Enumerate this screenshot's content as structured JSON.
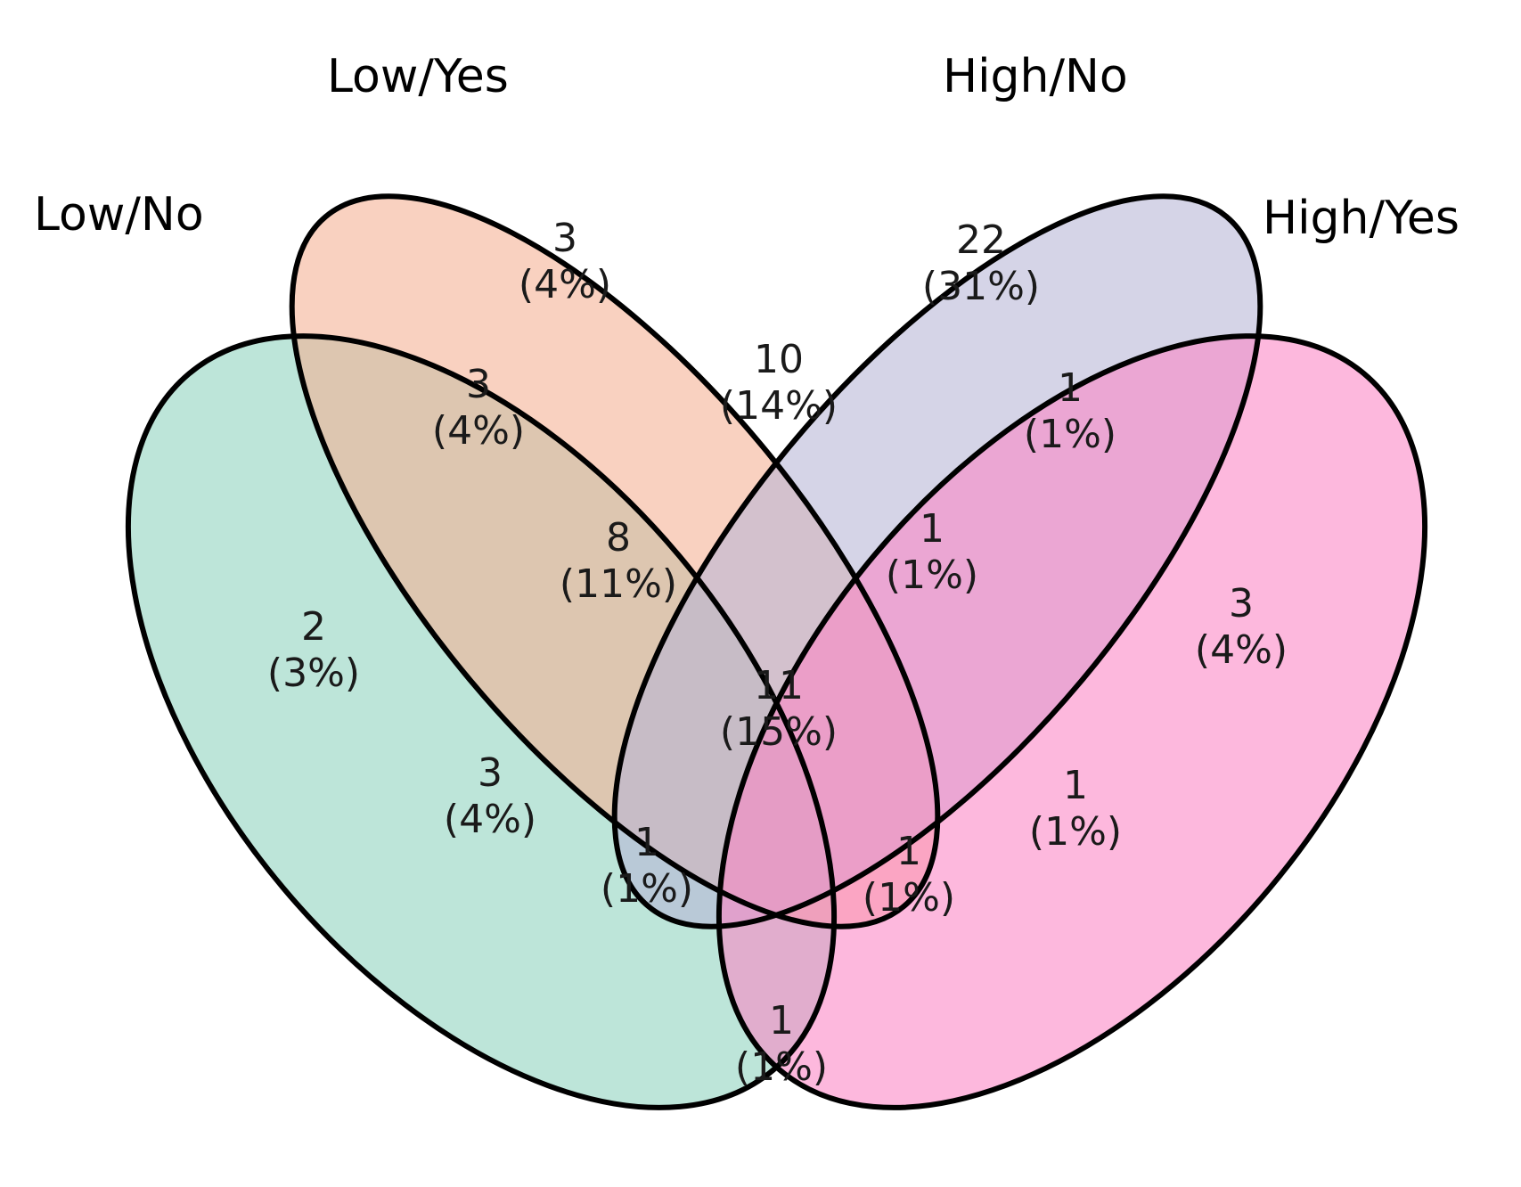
{
  "sets": [
    {
      "id": "low_no",
      "label": "Low/No",
      "color": "#8ED2BE"
    },
    {
      "id": "low_yes",
      "label": "Low/Yes",
      "color": "#F5AF93"
    },
    {
      "id": "high_no",
      "label": "High/No",
      "color": "#B7B5D6"
    },
    {
      "id": "high_yes",
      "label": "High/Yes",
      "color": "#FB84C4"
    }
  ],
  "regions": [
    {
      "sets": [
        "low_yes"
      ],
      "count": "3",
      "pct": "(4%)"
    },
    {
      "sets": [
        "high_no"
      ],
      "count": "22",
      "pct": "(31%)"
    },
    {
      "sets": [
        "low_no",
        "low_yes"
      ],
      "count": "3",
      "pct": "(4%)"
    },
    {
      "sets": [
        "low_yes",
        "high_no"
      ],
      "count": "10",
      "pct": "(14%)"
    },
    {
      "sets": [
        "high_no",
        "high_yes"
      ],
      "count": "1",
      "pct": "(1%)"
    },
    {
      "sets": [
        "low_no",
        "low_yes",
        "high_no"
      ],
      "count": "8",
      "pct": "(11%)"
    },
    {
      "sets": [
        "low_yes",
        "high_no",
        "high_yes"
      ],
      "count": "1",
      "pct": "(1%)"
    },
    {
      "sets": [
        "low_no"
      ],
      "count": "2",
      "pct": "(3%)"
    },
    {
      "sets": [
        "high_yes"
      ],
      "count": "3",
      "pct": "(4%)"
    },
    {
      "sets": [
        "low_no",
        "low_yes",
        "high_no",
        "high_yes"
      ],
      "count": "11",
      "pct": "(15%)"
    },
    {
      "sets": [
        "low_no",
        "high_no"
      ],
      "count": "3",
      "pct": "(4%)"
    },
    {
      "sets": [
        "low_yes",
        "high_yes"
      ],
      "count": "1",
      "pct": "(1%)"
    },
    {
      "sets": [
        "low_no",
        "high_no",
        "high_yes"
      ],
      "count": "1",
      "pct": "(1%)"
    },
    {
      "sets": [
        "low_no",
        "low_yes",
        "high_yes"
      ],
      "count": "1",
      "pct": "(1%)"
    },
    {
      "sets": [
        "low_no",
        "high_yes"
      ],
      "count": "1",
      "pct": "(1%)"
    }
  ]
}
